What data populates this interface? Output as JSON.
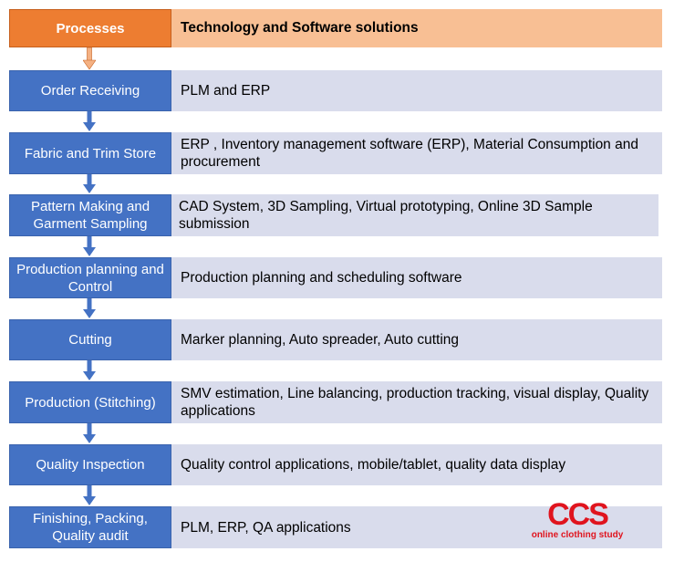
{
  "header": {
    "processes": "Processes",
    "solutions": "Technology and Software solutions"
  },
  "rows": [
    {
      "process": "Order Receiving",
      "solution": "PLM and ERP"
    },
    {
      "process": "Fabric and Trim Store",
      "solution": "ERP , Inventory management  software (ERP), Material Consumption and procurement"
    },
    {
      "process": "Pattern Making and Garment Sampling",
      "solution": "CAD System, 3D Sampling, Virtual prototyping, Online 3D Sample submission"
    },
    {
      "process": "Production planning and Control",
      "solution": "Production planning and scheduling software"
    },
    {
      "process": "Cutting",
      "solution": "Marker planning, Auto spreader, Auto cutting"
    },
    {
      "process": "Production (Stitching)",
      "solution": "SMV estimation, Line balancing, production tracking, visual display, Quality applications"
    },
    {
      "process": "Quality Inspection",
      "solution": "Quality control applications, mobile/tablet, quality data display"
    },
    {
      "process": "Finishing, Packing, Quality audit",
      "solution": "PLM, ERP, QA applications"
    }
  ],
  "logo": {
    "letters": "CCS",
    "caption": "online clothing study"
  },
  "colors": {
    "header_process": "#ed7d31",
    "header_solution": "#f8bf94",
    "process": "#4472c4",
    "solution": "#d9dcec",
    "logo_red": "#e0141e"
  }
}
